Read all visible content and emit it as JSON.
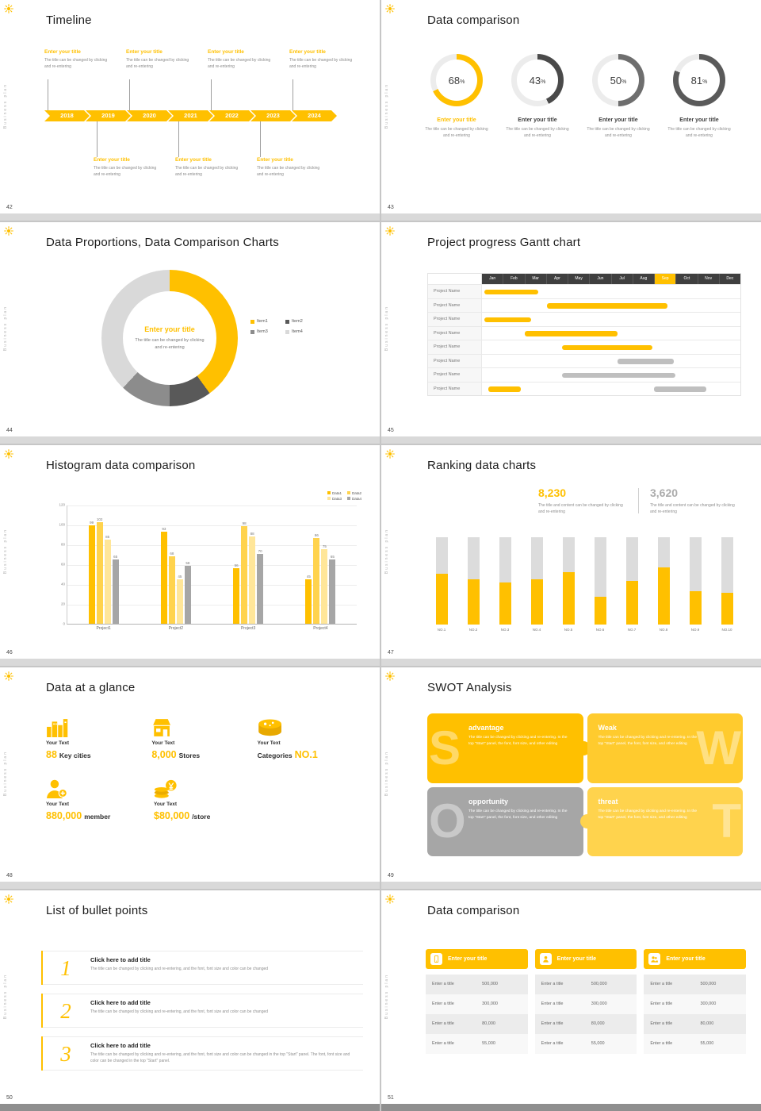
{
  "sidebar_text": "Business plan",
  "colors": {
    "accent": "#FFC000",
    "accent_light": "#FFD966",
    "accent_pale": "#FFE699",
    "gray_dark": "#595959",
    "gray_mid": "#A6A6A6",
    "gray_light": "#D9D9D9"
  },
  "timeline": {
    "title": "Timeline",
    "page": "42",
    "years": [
      "2018",
      "2019",
      "2020",
      "2021",
      "2022",
      "2023",
      "2024"
    ],
    "top_entries": [
      {
        "title": "Enter your title",
        "desc": "The title can be changed by clicking and re-entering"
      },
      {
        "title": "Enter your title",
        "desc": "The title can be changed by clicking and re-entering"
      },
      {
        "title": "Enter your title",
        "desc": "The title can be changed by clicking and re-entering"
      },
      {
        "title": "Enter your title",
        "desc": "The title can be changed by clicking and re-entering"
      }
    ],
    "bottom_entries": [
      {
        "title": "Enter your title",
        "desc": "The title can be changed by clicking and re-entering"
      },
      {
        "title": "Enter your title",
        "desc": "The title can be changed by clicking and re-entering"
      },
      {
        "title": "Enter your title",
        "desc": "The title can be changed by clicking and re-entering"
      }
    ]
  },
  "donut_compare": {
    "title": "Data comparison",
    "page": "43",
    "items": [
      {
        "pct": 68,
        "ring_color": "#FFC000",
        "label": "Enter your title",
        "label_color": "#FFC000",
        "desc": "The title can be changed by clicking and re-entering"
      },
      {
        "pct": 43,
        "ring_color": "#4a4a4a",
        "label": "Enter your title",
        "label_color": "#3f3f3f",
        "desc": "The title can be changed by clicking and re-entering"
      },
      {
        "pct": 50,
        "ring_color": "#6e6e6e",
        "label": "Enter your title",
        "label_color": "#3f3f3f",
        "desc": "The title can be changed by clicking and re-entering"
      },
      {
        "pct": 81,
        "ring_color": "#5a5a5a",
        "label": "Enter your title",
        "label_color": "#3f3f3f",
        "desc": "The title can be changed by clicking and re-entering"
      }
    ]
  },
  "proportions": {
    "title": "Data Proportions, Data Comparison Charts",
    "page": "44",
    "center_title": "Enter your title",
    "center_desc": "The title can be changed by clicking and re-entering",
    "chart_data": {
      "type": "pie",
      "segments": [
        {
          "name": "Item1",
          "value": 40,
          "color": "#FFC000"
        },
        {
          "name": "Item2",
          "value": 10,
          "color": "#595959"
        },
        {
          "name": "Item3",
          "value": 12,
          "color": "#8c8c8c"
        },
        {
          "name": "Item4",
          "value": 38,
          "color": "#d9d9d9"
        }
      ]
    }
  },
  "gantt": {
    "title": "Project progress Gantt chart",
    "page": "45",
    "months": [
      "Jan",
      "Feb",
      "Mar",
      "Apr",
      "May",
      "Jun",
      "Jul",
      "Aug",
      "Sep",
      "Oct",
      "Nov",
      "Dec"
    ],
    "highlight_month": "Sep",
    "row_label": "Project Name",
    "rows": [
      {
        "bars": [
          {
            "s": 0.1,
            "e": 2.6,
            "c": "#FFC000"
          }
        ]
      },
      {
        "bars": [
          {
            "s": 3.0,
            "e": 8.6,
            "c": "#FFC000"
          }
        ]
      },
      {
        "bars": [
          {
            "s": 0.1,
            "e": 2.3,
            "c": "#FFC000"
          }
        ]
      },
      {
        "bars": [
          {
            "s": 2.0,
            "e": 6.3,
            "c": "#FFC000"
          }
        ]
      },
      {
        "bars": [
          {
            "s": 3.7,
            "e": 7.9,
            "c": "#FFC000"
          }
        ]
      },
      {
        "bars": [
          {
            "s": 6.3,
            "e": 8.9,
            "c": "#bfbfbf"
          }
        ]
      },
      {
        "bars": [
          {
            "s": 3.7,
            "e": 9.0,
            "c": "#bfbfbf"
          }
        ]
      },
      {
        "bars": [
          {
            "s": 0.3,
            "e": 1.8,
            "c": "#FFC000"
          },
          {
            "s": 8.0,
            "e": 10.4,
            "c": "#bfbfbf"
          }
        ]
      }
    ]
  },
  "histogram": {
    "title": "Histogram data comparison",
    "page": "46",
    "chart_data": {
      "type": "bar",
      "categories": [
        "Project1",
        "Project2",
        "Project3",
        "Project4"
      ],
      "series": [
        {
          "name": "Data1",
          "color": "#FFC000",
          "values": [
            99,
            93,
            56,
            45
          ]
        },
        {
          "name": "Data2",
          "color": "#FFD34D",
          "values": [
            102,
            68,
            98,
            86
          ]
        },
        {
          "name": "Data3",
          "color": "#FFE699",
          "values": [
            85,
            45,
            88,
            75
          ]
        },
        {
          "name": "Data4",
          "color": "#a6a6a6",
          "values": [
            65,
            58,
            70,
            65
          ]
        }
      ],
      "ylim": [
        0,
        120
      ],
      "yticks": [
        0,
        20,
        40,
        60,
        80,
        100,
        120
      ],
      "legend_position": "top-right",
      "grid": true
    }
  },
  "ranking": {
    "title": "Ranking data charts",
    "page": "47",
    "stat1": {
      "value": "8,230",
      "desc": "The title and content can be changed by clicking and re-entering"
    },
    "stat2": {
      "value": "3,620",
      "desc": "The title and content can be changed by clicking and re-entering"
    },
    "chart_data": {
      "type": "bar",
      "categories": [
        "NO.1",
        "NO.2",
        "NO.3",
        "NO.4",
        "NO.5",
        "NO.6",
        "NO.7",
        "NO.8",
        "NO.9",
        "NO.10"
      ],
      "values": [
        58,
        52,
        48,
        52,
        60,
        32,
        50,
        65,
        38,
        36
      ],
      "max": 100
    }
  },
  "glance": {
    "title": "Data at a glance",
    "page": "48",
    "items": [
      {
        "icon": "city",
        "label": "Your Text",
        "value": "88",
        "suffix": "Key cities"
      },
      {
        "icon": "store",
        "label": "Your Text",
        "value": "8,000",
        "suffix": "Stores"
      },
      {
        "icon": "categories",
        "label": "Your Text",
        "prefix": "Categories",
        "value": "NO.1"
      },
      {
        "icon": "member",
        "label": "Your Text",
        "value": "880,000",
        "suffix": "member"
      },
      {
        "icon": "coins",
        "label": "Your Text",
        "value": "$80,000",
        "suffix": "/store"
      }
    ]
  },
  "swot": {
    "title": "SWOT Analysis",
    "page": "49",
    "quads": [
      {
        "letter": "S",
        "heading": "advantage",
        "bg": "#FFC000",
        "desc": "The title can be changed by clicking and re-entering. In the top \"Start\" panel, the font, font size, and other editing"
      },
      {
        "letter": "W",
        "heading": "Weak",
        "bg": "#FFCB2E",
        "desc": "The title can be changed by clicking and re-entering. In the top \"Start\" panel, the font, font size, and other editing"
      },
      {
        "letter": "O",
        "heading": "opportunity",
        "bg": "#a6a6a6",
        "desc": "The title can be changed by clicking and re-entering. In the top \"Start\" panel, the font, font size, and other editing"
      },
      {
        "letter": "T",
        "heading": "threat",
        "bg": "#FFD34D",
        "desc": "The title can be changed by clicking and re-entering. In the top \"Start\" panel, the font, font size, and other editing"
      }
    ]
  },
  "bullets": {
    "title": "List of bullet points",
    "page": "50",
    "items": [
      {
        "num": "1",
        "heading": "Click here to add title",
        "desc": "The title can be changed by clicking and re-entering, and the font, font size and color can be changed"
      },
      {
        "num": "2",
        "heading": "Click here to add title",
        "desc": "The title can be changed by clicking and re-entering, and the font, font size and color can be changed"
      },
      {
        "num": "3",
        "heading": "Click here to add title",
        "desc": "The title can be changed by clicking and re-entering, and the font, font size and color can be changed in the top \"Start\" panel. The font, font size and color can be changed in the top \"Start\" panel."
      }
    ]
  },
  "tables": {
    "title": "Data comparison",
    "page": "51",
    "columns": [
      {
        "icon": "device",
        "header": "Enter your title",
        "rows": [
          [
            "Enter a title",
            "500,000"
          ],
          [
            "Enter a title",
            "300,000"
          ],
          [
            "Enter a title",
            "80,000"
          ],
          [
            "Enter a title",
            "55,000"
          ]
        ]
      },
      {
        "icon": "person",
        "header": "Enter your title",
        "rows": [
          [
            "Enter a title",
            "500,000"
          ],
          [
            "Enter a title",
            "300,000"
          ],
          [
            "Enter a title",
            "80,000"
          ],
          [
            "Enter a title",
            "55,000"
          ]
        ]
      },
      {
        "icon": "people",
        "header": "Enter your title",
        "rows": [
          [
            "Enter a title",
            "500,000"
          ],
          [
            "Enter a title",
            "300,000"
          ],
          [
            "Enter a title",
            "80,000"
          ],
          [
            "Enter a title",
            "55,000"
          ]
        ]
      }
    ]
  }
}
